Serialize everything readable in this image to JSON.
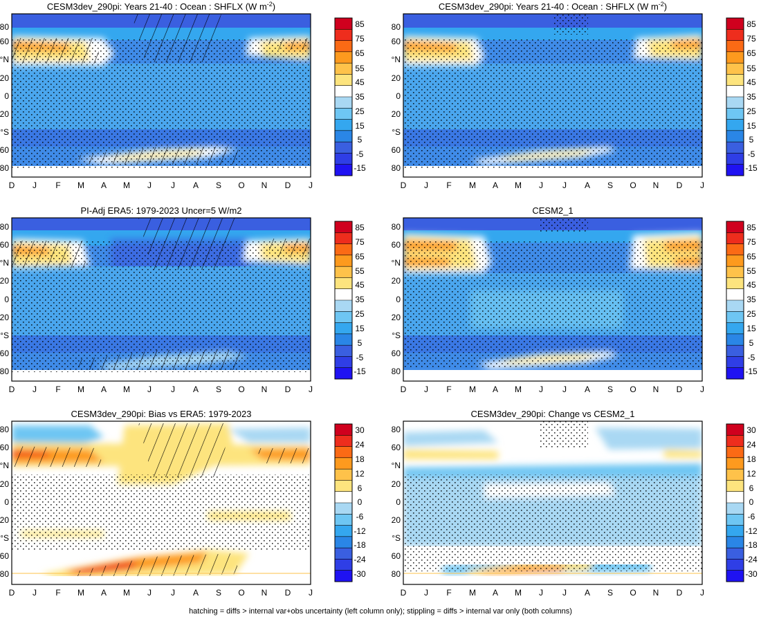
{
  "chart_data": [
    {
      "type": "heatmap",
      "title": "CESM3dev_290pi: Years 21-40 : Ocean : SHFLX (W m",
      "title_sup": "-2",
      "title_close": ")",
      "x_ticks": [
        "D",
        "J",
        "F",
        "M",
        "A",
        "M",
        "J",
        "J",
        "A",
        "S",
        "O",
        "N",
        "D",
        "J"
      ],
      "y_ticks": [
        "80",
        "60",
        "°N",
        "20",
        "0",
        "20",
        "°S",
        "60",
        "80"
      ],
      "colorbar_ticks": [
        "85",
        "75",
        "65",
        "55",
        "45",
        "35",
        "25",
        "15",
        "5",
        "-5",
        "-15"
      ],
      "colorbar_colors": [
        "#d0001e",
        "#ee2d1d",
        "#fb6a15",
        "#fd9a1e",
        "#fec24a",
        "#fde47e",
        "#ffffff",
        "#a9d8f3",
        "#6ec6f3",
        "#34a7ef",
        "#2a86e6",
        "#3a5fe0",
        "#2f3ee6",
        "#1f12f2"
      ],
      "hatching": true
    },
    {
      "type": "heatmap",
      "title": "CESM3dev_290pi: Years 21-40 : Ocean : SHFLX (W m",
      "title_sup": "-2",
      "title_close": ")",
      "x_ticks": [
        "D",
        "J",
        "F",
        "M",
        "A",
        "M",
        "J",
        "J",
        "A",
        "S",
        "O",
        "N",
        "D",
        "J"
      ],
      "y_ticks": [
        "80",
        "60",
        "°N",
        "20",
        "0",
        "20",
        "°S",
        "60",
        "80"
      ],
      "colorbar_ticks": [
        "85",
        "75",
        "65",
        "55",
        "45",
        "35",
        "25",
        "15",
        "5",
        "-5",
        "-15"
      ],
      "colorbar_colors": [
        "#d0001e",
        "#ee2d1d",
        "#fb6a15",
        "#fd9a1e",
        "#fec24a",
        "#fde47e",
        "#ffffff",
        "#a9d8f3",
        "#6ec6f3",
        "#34a7ef",
        "#2a86e6",
        "#3a5fe0",
        "#2f3ee6",
        "#1f12f2"
      ],
      "hatching": false
    },
    {
      "type": "heatmap",
      "title": "PI-Adj ERA5: 1979-2023 Uncer=5 W/m2",
      "x_ticks": [
        "D",
        "J",
        "F",
        "M",
        "A",
        "M",
        "J",
        "J",
        "A",
        "S",
        "O",
        "N",
        "D",
        "J"
      ],
      "y_ticks": [
        "80",
        "60",
        "°N",
        "20",
        "0",
        "20",
        "°S",
        "60",
        "80"
      ],
      "colorbar_ticks": [
        "85",
        "75",
        "65",
        "55",
        "45",
        "35",
        "25",
        "15",
        "5",
        "-5",
        "-15"
      ],
      "colorbar_colors": [
        "#d0001e",
        "#ee2d1d",
        "#fb6a15",
        "#fd9a1e",
        "#fec24a",
        "#fde47e",
        "#ffffff",
        "#a9d8f3",
        "#6ec6f3",
        "#34a7ef",
        "#2a86e6",
        "#3a5fe0",
        "#2f3ee6",
        "#1f12f2"
      ],
      "hatching": true
    },
    {
      "type": "heatmap",
      "title": "CESM2_1",
      "x_ticks": [
        "D",
        "J",
        "F",
        "M",
        "A",
        "M",
        "J",
        "J",
        "A",
        "S",
        "O",
        "N",
        "D",
        "J"
      ],
      "y_ticks": [
        "80",
        "60",
        "°N",
        "20",
        "0",
        "20",
        "°S",
        "60",
        "80"
      ],
      "colorbar_ticks": [
        "85",
        "75",
        "65",
        "55",
        "45",
        "35",
        "25",
        "15",
        "5",
        "-5",
        "-15"
      ],
      "colorbar_colors": [
        "#d0001e",
        "#ee2d1d",
        "#fb6a15",
        "#fd9a1e",
        "#fec24a",
        "#fde47e",
        "#ffffff",
        "#a9d8f3",
        "#6ec6f3",
        "#34a7ef",
        "#2a86e6",
        "#3a5fe0",
        "#2f3ee6",
        "#1f12f2"
      ],
      "hatching": false
    },
    {
      "type": "heatmap",
      "title": "CESM3dev_290pi: Bias vs ERA5: 1979-2023",
      "x_ticks": [
        "D",
        "J",
        "F",
        "M",
        "A",
        "M",
        "J",
        "J",
        "A",
        "S",
        "O",
        "N",
        "D",
        "J"
      ],
      "y_ticks": [
        "80",
        "60",
        "°N",
        "20",
        "0",
        "20",
        "°S",
        "60",
        "80"
      ],
      "colorbar_ticks": [
        "30",
        "24",
        "18",
        "12",
        "6",
        "0",
        "-6",
        "-12",
        "-18",
        "-24",
        "-30"
      ],
      "colorbar_colors": [
        "#d0001e",
        "#ee2d1d",
        "#fb6a15",
        "#fd9a1e",
        "#fec24a",
        "#fde47e",
        "#ffffff",
        "#a9d8f3",
        "#6ec6f3",
        "#34a7ef",
        "#2a86e6",
        "#3a5fe0",
        "#2f3ee6",
        "#1f12f2"
      ],
      "hatching": true
    },
    {
      "type": "heatmap",
      "title": "CESM3dev_290pi: Change vs CESM2_1",
      "x_ticks": [
        "D",
        "J",
        "F",
        "M",
        "A",
        "M",
        "J",
        "J",
        "A",
        "S",
        "O",
        "N",
        "D",
        "J"
      ],
      "y_ticks": [
        "80",
        "60",
        "°N",
        "20",
        "0",
        "20",
        "°S",
        "60",
        "80"
      ],
      "colorbar_ticks": [
        "30",
        "24",
        "18",
        "12",
        "6",
        "0",
        "-6",
        "-12",
        "-18",
        "-24",
        "-30"
      ],
      "colorbar_colors": [
        "#d0001e",
        "#ee2d1d",
        "#fb6a15",
        "#fd9a1e",
        "#fec24a",
        "#fde47e",
        "#ffffff",
        "#a9d8f3",
        "#6ec6f3",
        "#34a7ef",
        "#2a86e6",
        "#3a5fe0",
        "#2f3ee6",
        "#1f12f2"
      ],
      "hatching": false
    }
  ],
  "footnote": "hatching = diffs > internal var+obs uncertainty (left column only); stippling = diffs > internal var only (both columns)"
}
